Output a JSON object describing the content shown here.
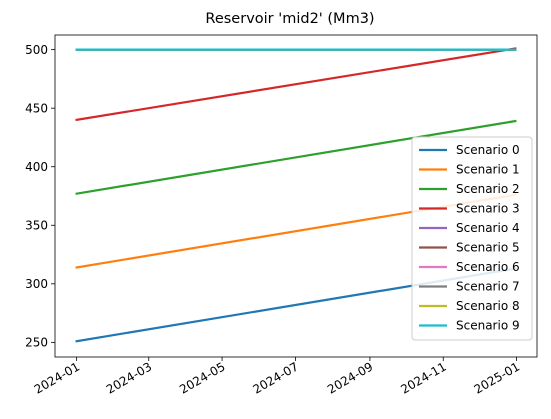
{
  "chart_data": {
    "type": "line",
    "title": "Reservoir 'mid2' (Mm3)",
    "xlabel": "",
    "ylabel": "",
    "x_type": "date",
    "x_ticks": [
      "2024-01",
      "2024-03",
      "2024-05",
      "2024-07",
      "2024-09",
      "2024-11",
      "2025-01"
    ],
    "y_ticks": [
      250,
      300,
      350,
      400,
      450,
      500
    ],
    "xlim": [
      "2023-12-14",
      "2025-01-18"
    ],
    "ylim": [
      237.5,
      512.5
    ],
    "grid": false,
    "legend_position": "lower-right",
    "series": [
      {
        "name": "Scenario 0",
        "color": "#1f77b4",
        "x": [
          "2024-01-01",
          "2024-12-31"
        ],
        "y": [
          251,
          313
        ]
      },
      {
        "name": "Scenario 1",
        "color": "#ff7f0e",
        "x": [
          "2024-01-01",
          "2024-12-31"
        ],
        "y": [
          314,
          376
        ]
      },
      {
        "name": "Scenario 2",
        "color": "#2ca02c",
        "x": [
          "2024-01-01",
          "2024-12-31"
        ],
        "y": [
          377,
          439
        ]
      },
      {
        "name": "Scenario 3",
        "color": "#d62728",
        "x": [
          "2024-01-01",
          "2024-12-31"
        ],
        "y": [
          440,
          501
        ]
      },
      {
        "name": "Scenario 4",
        "color": "#9467bd",
        "x": [
          "2024-01-01",
          "2024-12-31"
        ],
        "y": [
          500,
          500
        ]
      },
      {
        "name": "Scenario 5",
        "color": "#8c564b",
        "x": [
          "2024-01-01",
          "2024-12-31"
        ],
        "y": [
          500,
          500
        ]
      },
      {
        "name": "Scenario 6",
        "color": "#e377c2",
        "x": [
          "2024-01-01",
          "2024-12-31"
        ],
        "y": [
          500,
          500
        ]
      },
      {
        "name": "Scenario 7",
        "color": "#7f7f7f",
        "x": [
          "2024-01-01",
          "2024-12-31"
        ],
        "y": [
          500,
          500
        ]
      },
      {
        "name": "Scenario 8",
        "color": "#bcbd22",
        "x": [
          "2024-01-01",
          "2024-12-31"
        ],
        "y": [
          500,
          500
        ]
      },
      {
        "name": "Scenario 9",
        "color": "#17becf",
        "x": [
          "2024-01-01",
          "2024-12-31"
        ],
        "y": [
          500,
          500
        ]
      }
    ]
  }
}
